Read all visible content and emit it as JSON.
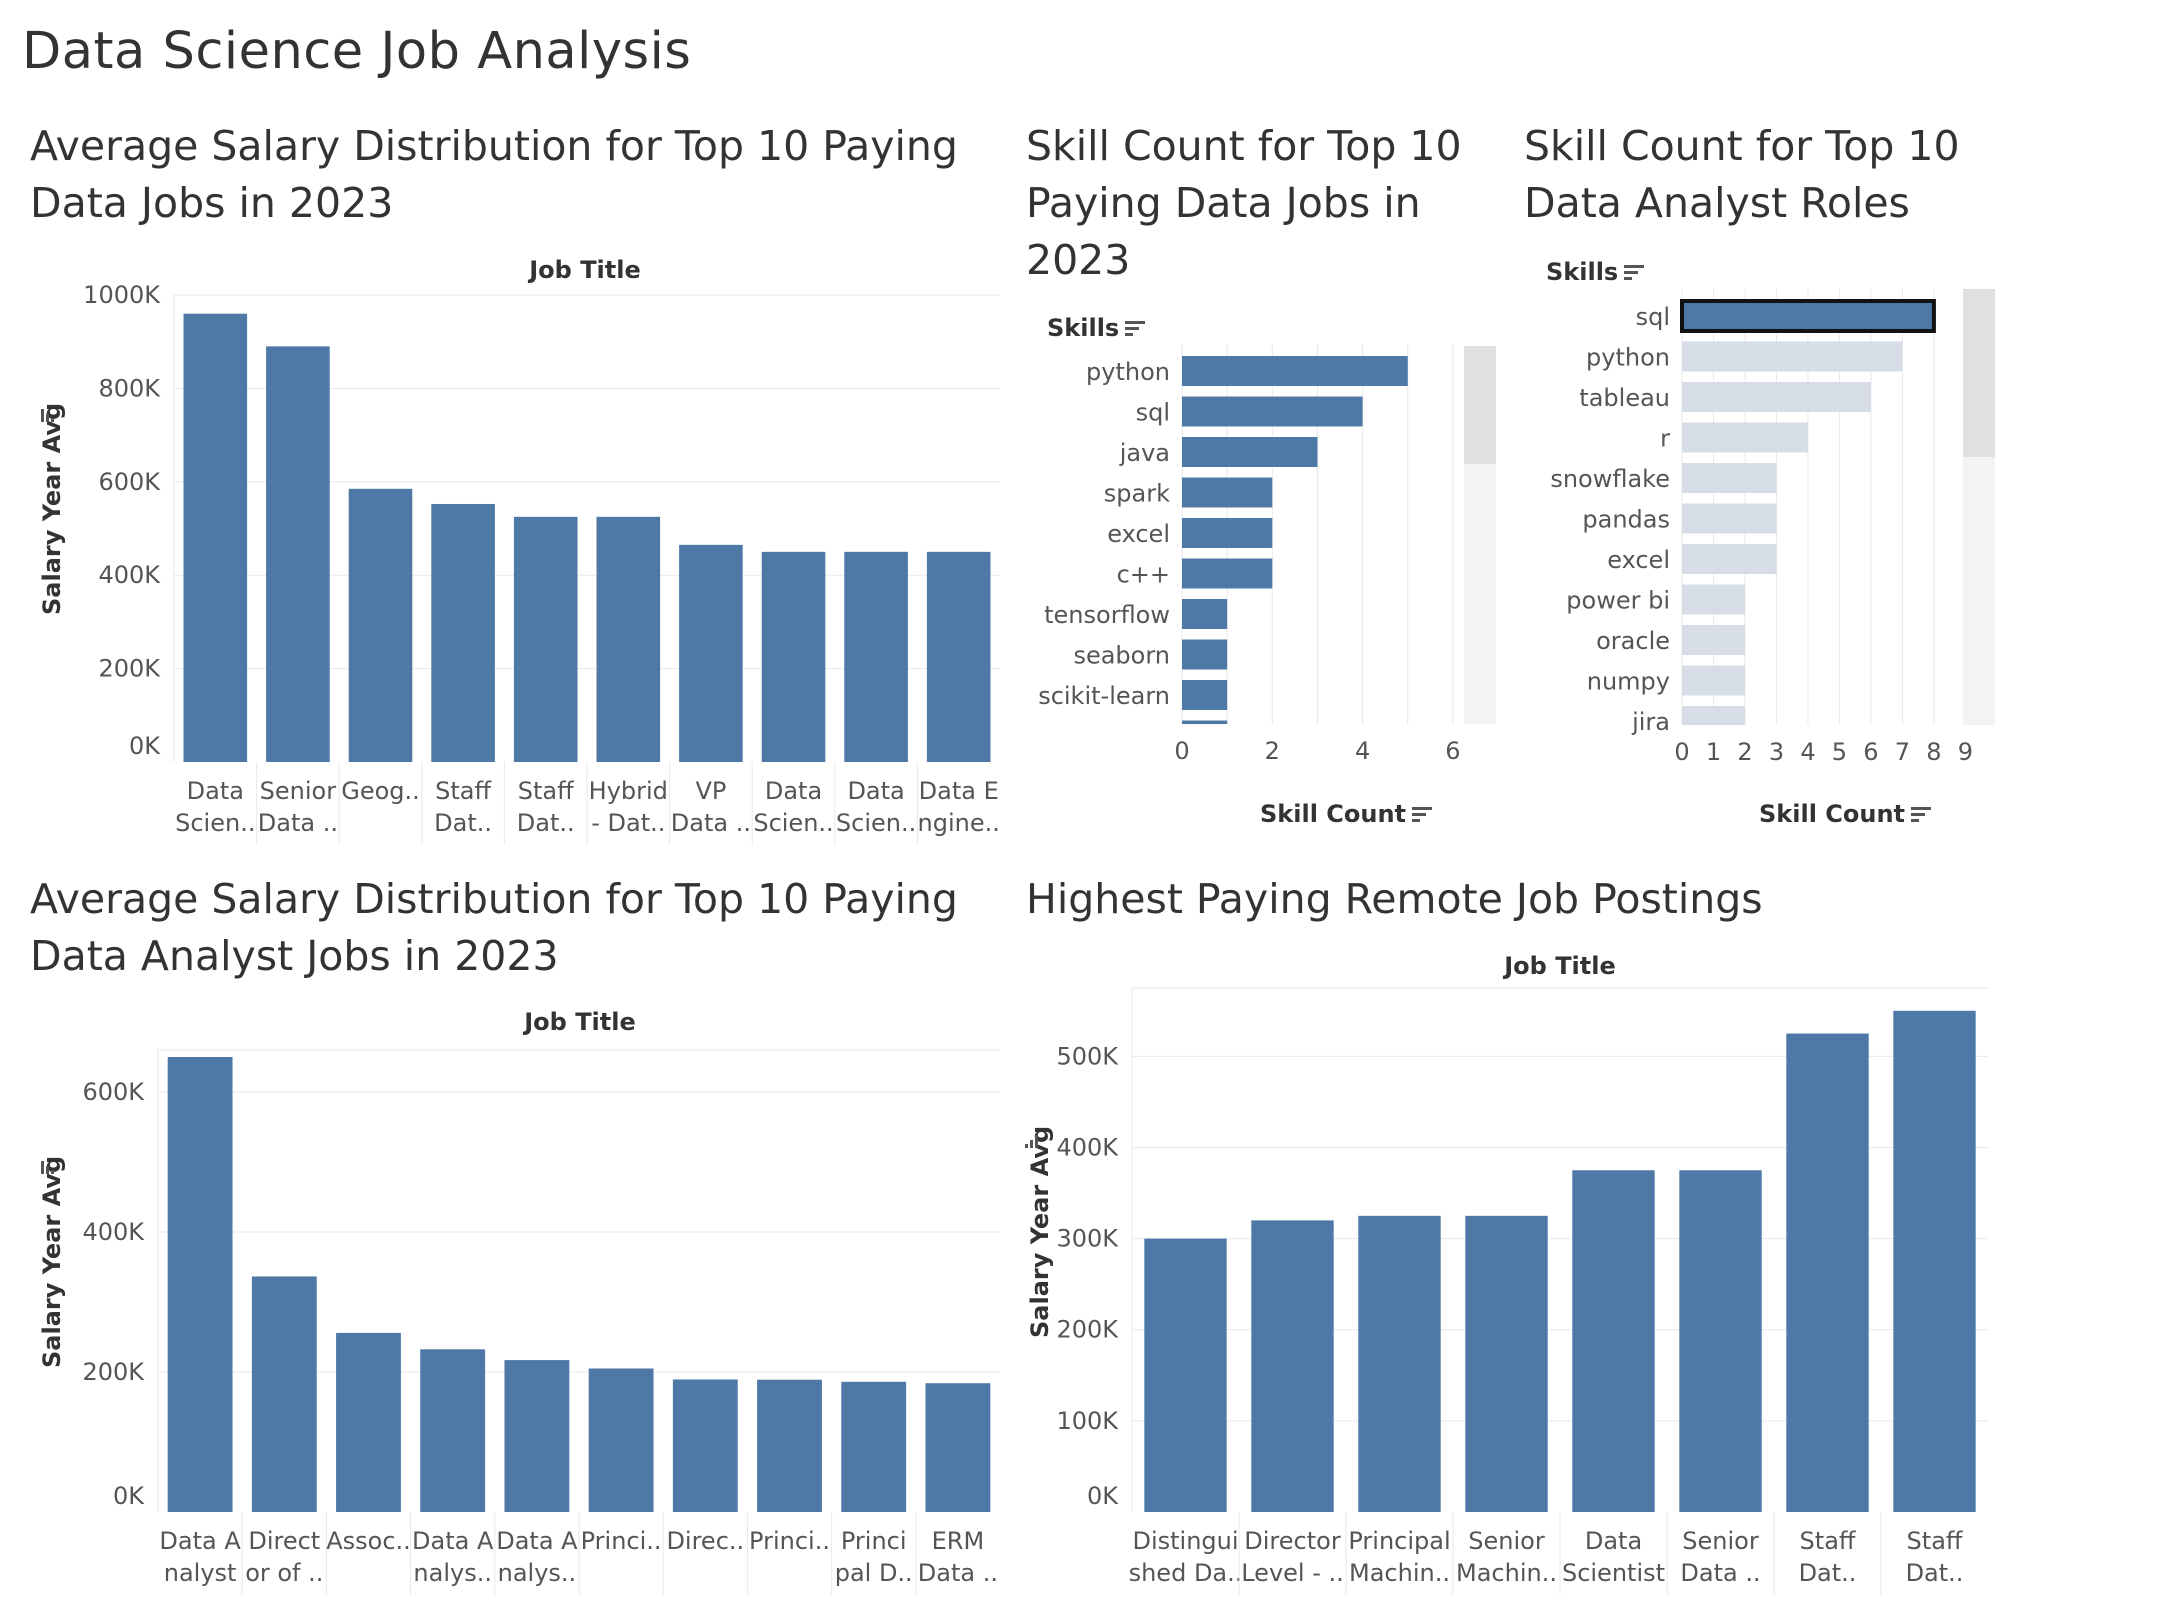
{
  "dashboard": {
    "title": "Data Science Job Analysis"
  },
  "colors": {
    "bar": "#4e79a7",
    "bar_faded": "#d6dde6",
    "grid": "#e9e9e9",
    "scroll_track": "#f3f3f3",
    "scroll_thumb": "#e0e0e0"
  },
  "chart_data": [
    {
      "id": "ds_salary",
      "type": "bar",
      "title": "Average Salary Distribution for Top 10 Paying Data Jobs in 2023",
      "column_header": "Job Title",
      "ylabel": "Salary Year Avg",
      "ylim": [
        0,
        1000000
      ],
      "y_ticks": [
        "0K",
        "200K",
        "400K",
        "600K",
        "800K",
        "1000K"
      ],
      "categories": [
        [
          "Data",
          "Scien.."
        ],
        [
          "Senior",
          "Data .."
        ],
        [
          "Geog..",
          ""
        ],
        [
          "Staff",
          "Dat.."
        ],
        [
          "Staff",
          "Dat.."
        ],
        [
          "Hybrid",
          "- Dat.."
        ],
        [
          "VP",
          "Data .."
        ],
        [
          "Data",
          "Scien.."
        ],
        [
          "Data",
          "Scien.."
        ],
        [
          "Data E",
          "ngine.."
        ]
      ],
      "values": [
        960000,
        890000,
        585000,
        552500,
        525000,
        525000,
        465000,
        450000,
        450000,
        450000
      ]
    },
    {
      "id": "ds_skills",
      "type": "bar",
      "orientation": "horizontal",
      "title": "Skill Count for Top 10 Paying Data Jobs in 2023",
      "row_header": "Skills",
      "xlabel": "Skill Count",
      "xlim": [
        0,
        6.6
      ],
      "x_ticks": [
        "0",
        "2",
        "4",
        "6"
      ],
      "categories": [
        "python",
        "sql",
        "java",
        "spark",
        "excel",
        "c++",
        "tensorflow",
        "seaborn",
        "scikit-learn",
        "·"
      ],
      "values": [
        5,
        4,
        3,
        2,
        2,
        2,
        1,
        1,
        1,
        1
      ]
    },
    {
      "id": "da_skills",
      "type": "bar",
      "orientation": "horizontal",
      "title": "Skill Count for Top 10 Data Analyst Roles",
      "row_header": "Skills",
      "xlabel": "Skill Count",
      "xlim": [
        0,
        9.4
      ],
      "x_ticks": [
        "0",
        "1",
        "2",
        "3",
        "4",
        "5",
        "6",
        "7",
        "8",
        "9"
      ],
      "categories": [
        "sql",
        "python",
        "tableau",
        "r",
        "snowflake",
        "pandas",
        "excel",
        "power bi",
        "oracle",
        "numpy",
        "jira"
      ],
      "values": [
        8,
        7,
        6,
        4,
        3,
        3,
        3,
        2,
        2,
        2,
        2
      ],
      "selected": "sql"
    },
    {
      "id": "da_salary",
      "type": "bar",
      "title": "Average Salary Distribution for Top 10 Paying Data Analyst Jobs in 2023",
      "column_header": "Job Title",
      "ylabel": "Salary Year Avg",
      "ylim": [
        0,
        660000
      ],
      "y_ticks": [
        "0K",
        "200K",
        "400K",
        "600K"
      ],
      "categories": [
        [
          "Data A",
          "nalyst"
        ],
        [
          "Direct",
          "or of .."
        ],
        [
          "Assoc..",
          ""
        ],
        [
          "Data A",
          "nalys.."
        ],
        [
          "Data A",
          "nalys.."
        ],
        [
          "Princi..",
          ""
        ],
        [
          "Direc..",
          ""
        ],
        [
          "Princi..",
          ""
        ],
        [
          "Princi",
          "pal D.."
        ],
        [
          "ERM",
          "Data .."
        ]
      ],
      "values": [
        650000,
        336500,
        255829,
        232423,
        217000,
        205000,
        189309,
        189000,
        186000,
        184000
      ]
    },
    {
      "id": "remote_salary",
      "type": "bar",
      "title": "Highest Paying Remote Job Postings",
      "column_header": "Job Title",
      "ylabel": "Salary Year Avg",
      "ylim": [
        0,
        575000
      ],
      "y_ticks": [
        "0K",
        "100K",
        "200K",
        "300K",
        "400K",
        "500K"
      ],
      "categories": [
        [
          "Distingui",
          "shed Da.."
        ],
        [
          "Director",
          "Level - .."
        ],
        [
          "Principal",
          "Machin.."
        ],
        [
          "Senior",
          "Machin.."
        ],
        [
          "Data",
          "Scientist"
        ],
        [
          "Senior",
          "Data .."
        ],
        [
          "Staff",
          "Dat.."
        ],
        [
          "Staff",
          "Dat.."
        ]
      ],
      "values": [
        300000,
        320000,
        325000,
        325000,
        375000,
        375000,
        525000,
        550000
      ]
    }
  ]
}
